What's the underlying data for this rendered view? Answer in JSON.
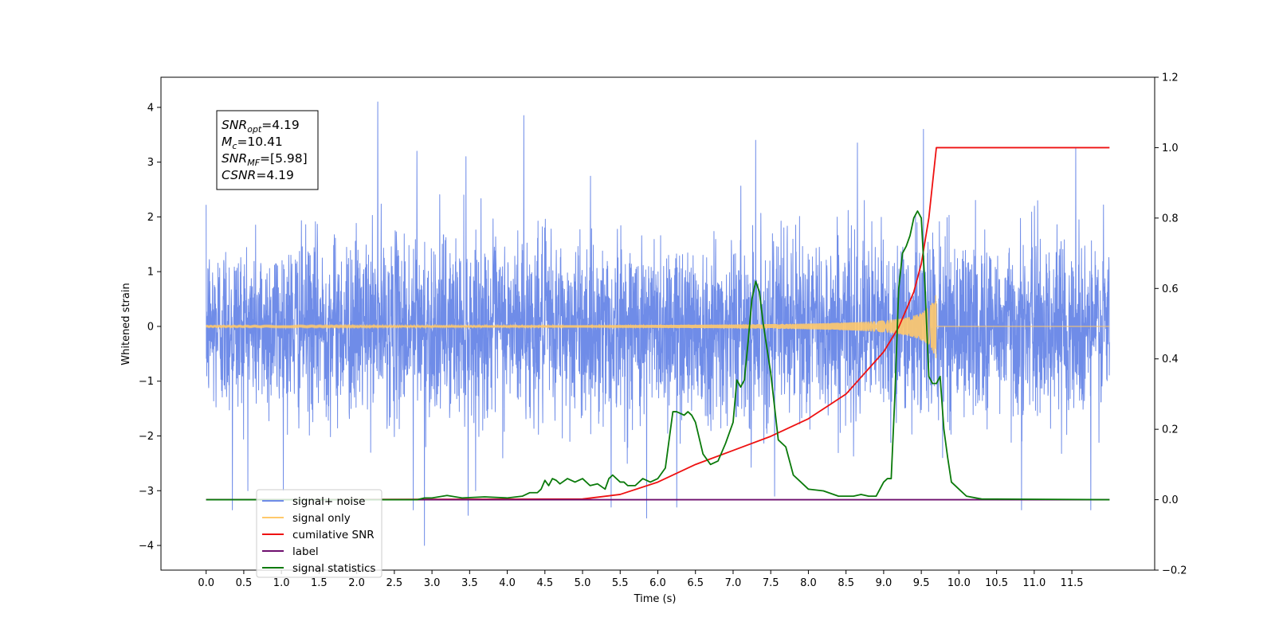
{
  "chart_data": {
    "type": "line",
    "xlabel": "Time (s)",
    "ylabel": "Whitened strain",
    "xlim": [
      -0.6,
      12.6
    ],
    "ylim": [
      -4.45,
      4.55
    ],
    "y2lim": [
      -0.2,
      1.2
    ],
    "x_ticks": [
      "0.0",
      "0.5",
      "1.0",
      "1.5",
      "2.0",
      "2.5",
      "3.0",
      "3.5",
      "4.0",
      "4.5",
      "5.0",
      "5.5",
      "6.0",
      "6.5",
      "7.0",
      "7.5",
      "8.0",
      "8.5",
      "9.0",
      "9.5",
      "10.0",
      "10.5",
      "11.0",
      "11.5"
    ],
    "y_ticks": [
      "4",
      "3",
      "2",
      "1",
      "0",
      "−1",
      "−2",
      "−3",
      "−4"
    ],
    "y2_ticks": [
      "1.2",
      "1.0",
      "0.8",
      "0.6",
      "0.4",
      "0.2",
      "0.0",
      "−0.2"
    ],
    "annotation": {
      "lines": [
        {
          "main": "SNR",
          "sub": "opt",
          "rest": "=4.19"
        },
        {
          "main": "M",
          "sub": "c",
          "rest": "=10.41"
        },
        {
          "main": "SNR",
          "sub": "MF",
          "rest": "=[5.98]"
        },
        {
          "main": "CSNR",
          "sub": "",
          "rest": "=4.19"
        }
      ]
    },
    "legend": {
      "position": "lower-left",
      "entries": [
        {
          "label": "signal+ noise",
          "color": "#6f8ce8"
        },
        {
          "label": "signal only",
          "color": "#ffc96b"
        },
        {
          "label": "cumilative SNR",
          "color": "#ee1111"
        },
        {
          "label": "label",
          "color": "#6e0f6e"
        },
        {
          "label": "signal statistics",
          "color": "#0a7a0a"
        }
      ]
    },
    "series": [
      {
        "name": "signal+ noise",
        "axis": "left",
        "color": "#6f8ce8",
        "x_range": [
          0.0,
          12.0
        ],
        "std": 0.8,
        "spikes": [
          {
            "x": 2.28,
            "y": 4.1
          },
          {
            "x": 4.22,
            "y": 3.85
          },
          {
            "x": 2.9,
            "y": -4.0
          },
          {
            "x": 9.53,
            "y": 3.6
          },
          {
            "x": 7.3,
            "y": 3.4
          },
          {
            "x": 8.65,
            "y": 3.35
          },
          {
            "x": 5.85,
            "y": -3.5
          },
          {
            "x": 0.35,
            "y": -3.35
          },
          {
            "x": 2.75,
            "y": -3.35
          },
          {
            "x": 3.48,
            "y": -3.45
          },
          {
            "x": 10.83,
            "y": -3.35
          },
          {
            "x": 11.75,
            "y": -3.35
          },
          {
            "x": 3.45,
            "y": 3.1
          },
          {
            "x": 2.8,
            "y": 3.2
          },
          {
            "x": 11.55,
            "y": 3.25
          },
          {
            "x": 6.25,
            "y": -3.3
          },
          {
            "x": 5.38,
            "y": -3.3
          },
          {
            "x": 7.55,
            "y": -3.1
          }
        ]
      },
      {
        "name": "signal only",
        "axis": "left",
        "color": "#ffc96b",
        "x_range": [
          0.0,
          12.0
        ],
        "merger_time": 9.7,
        "peak_amplitude": 0.62
      },
      {
        "name": "cumilative SNR",
        "axis": "right",
        "color": "#ee1111",
        "x": [
          0.0,
          5.0,
          5.5,
          6.0,
          6.5,
          7.0,
          7.5,
          8.0,
          8.5,
          9.0,
          9.2,
          9.4,
          9.5,
          9.6,
          9.65,
          9.7,
          10.0,
          12.0
        ],
        "values": [
          0.0,
          0.002,
          0.015,
          0.05,
          0.1,
          0.14,
          0.18,
          0.23,
          0.3,
          0.42,
          0.49,
          0.59,
          0.67,
          0.8,
          0.9,
          1.0,
          1.0,
          1.0
        ]
      },
      {
        "name": "label",
        "axis": "right",
        "color": "#6e0f6e",
        "x": [
          0.0,
          12.0
        ],
        "values": [
          0.0,
          0.0
        ]
      },
      {
        "name": "signal statistics",
        "axis": "right",
        "color": "#0a7a0a",
        "x": [
          0.0,
          2.8,
          2.9,
          3.0,
          3.2,
          3.4,
          3.7,
          4.0,
          4.2,
          4.3,
          4.4,
          4.45,
          4.5,
          4.55,
          4.6,
          4.65,
          4.7,
          4.8,
          4.9,
          5.0,
          5.1,
          5.2,
          5.3,
          5.35,
          5.4,
          5.5,
          5.55,
          5.6,
          5.7,
          5.8,
          5.9,
          6.0,
          6.1,
          6.2,
          6.25,
          6.35,
          6.4,
          6.45,
          6.5,
          6.6,
          6.7,
          6.8,
          6.9,
          6.95,
          7.0,
          7.05,
          7.1,
          7.15,
          7.2,
          7.25,
          7.3,
          7.35,
          7.4,
          7.5,
          7.6,
          7.7,
          7.8,
          7.9,
          8.0,
          8.2,
          8.4,
          8.5,
          8.6,
          8.7,
          8.8,
          8.9,
          9.0,
          9.05,
          9.1,
          9.15,
          9.2,
          9.25,
          9.3,
          9.35,
          9.4,
          9.45,
          9.5,
          9.55,
          9.6,
          9.65,
          9.7,
          9.75,
          9.8,
          9.85,
          9.9,
          10.0,
          10.1,
          10.3,
          12.0
        ],
        "values": [
          0.0,
          0.0,
          0.005,
          0.005,
          0.012,
          0.005,
          0.008,
          0.005,
          0.01,
          0.02,
          0.02,
          0.03,
          0.055,
          0.04,
          0.06,
          0.055,
          0.045,
          0.06,
          0.05,
          0.06,
          0.04,
          0.045,
          0.03,
          0.06,
          0.07,
          0.05,
          0.05,
          0.04,
          0.04,
          0.06,
          0.05,
          0.06,
          0.09,
          0.25,
          0.25,
          0.24,
          0.25,
          0.24,
          0.22,
          0.13,
          0.1,
          0.11,
          0.16,
          0.19,
          0.22,
          0.34,
          0.32,
          0.34,
          0.45,
          0.57,
          0.62,
          0.59,
          0.5,
          0.36,
          0.17,
          0.15,
          0.07,
          0.05,
          0.03,
          0.025,
          0.01,
          0.01,
          0.01,
          0.015,
          0.01,
          0.01,
          0.05,
          0.06,
          0.06,
          0.3,
          0.6,
          0.7,
          0.72,
          0.75,
          0.8,
          0.82,
          0.8,
          0.6,
          0.35,
          0.33,
          0.33,
          0.35,
          0.2,
          0.12,
          0.05,
          0.03,
          0.01,
          0.002,
          0.0
        ]
      }
    ]
  }
}
